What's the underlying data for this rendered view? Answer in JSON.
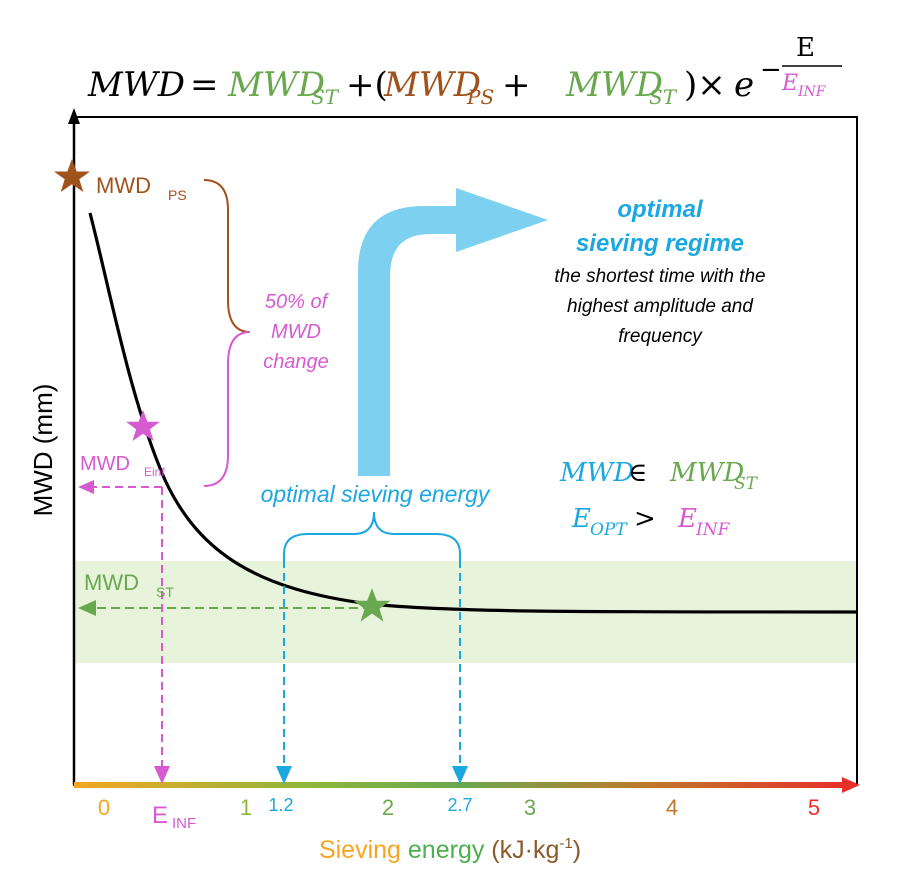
{
  "formula": {
    "lhs": "MWD",
    "eq": " = ",
    "st_base": "MWD",
    "st_sub": "ST",
    "plus_paren": "+(",
    "ps_base": "MWD",
    "ps_sub": "PS",
    "plus": " + ",
    "st2_base": "MWD",
    "st2_sub": "ST",
    "close_times": ")×",
    "e": "e",
    "minus": "−",
    "exp_num": "E",
    "exp_den_base": "E",
    "exp_den_sub": "INF"
  },
  "y_axis": {
    "label": "MWD (mm)"
  },
  "x_axis": {
    "label_part1": "Sieving ",
    "label_part2": "energy",
    "label_part3": " (kJ·kg",
    "label_sup": "-1",
    "label_part4": ")",
    "ticks": [
      {
        "label": "0",
        "value": 0,
        "color": "#f5a623"
      },
      {
        "label": "1",
        "value": 1,
        "color": "#8fb63a"
      },
      {
        "label": "2",
        "value": 2,
        "color": "#6aa84f"
      },
      {
        "label": "3",
        "value": 3,
        "color": "#6aa84f"
      },
      {
        "label": "4",
        "value": 4,
        "color": "#c0782b"
      },
      {
        "label": "5",
        "value": 5,
        "color": "#e8302a"
      }
    ],
    "e_inf_base": "E",
    "e_inf_sub": "INF",
    "opt_low": "1.2",
    "opt_high": "2.7"
  },
  "labels": {
    "mwd_ps_base": "MWD",
    "mwd_ps_sub": "PS",
    "mwd_einf_base": "MWD",
    "mwd_einf_sub": "Einf",
    "mwd_st_base": "MWD",
    "mwd_st_sub": "ST",
    "change_line1": "50% of",
    "change_line2": "MWD",
    "change_line3": "change",
    "opt_energy": "optimal sieving energy",
    "regime_line1": "optimal",
    "regime_line2": "sieving regime",
    "regime_desc1": "the shortest time with the",
    "regime_desc2": "highest amplitude and",
    "regime_desc3": "frequency",
    "cond1_a": "MWD",
    "cond1_op": " ∈ ",
    "cond1_b": "MWD",
    "cond1_b_sub": "ST",
    "cond2_a": "E",
    "cond2_a_sub": "OPT",
    "cond2_op": " > ",
    "cond2_b": "E",
    "cond2_b_sub": "INF"
  },
  "colors": {
    "ps": "#a0521c",
    "st": "#6aa84f",
    "inf": "#d65bd0",
    "opt": "#1ba7e0",
    "arrow": "#7dd0f0",
    "band": "#e8f3dc",
    "curve": "#000000"
  },
  "chart_data": {
    "type": "line",
    "xlim": [
      0,
      5
    ],
    "curve": "exponential decay",
    "e_inf": 0.5,
    "optimal_energy_range": [
      1.2,
      2.7
    ]
  }
}
